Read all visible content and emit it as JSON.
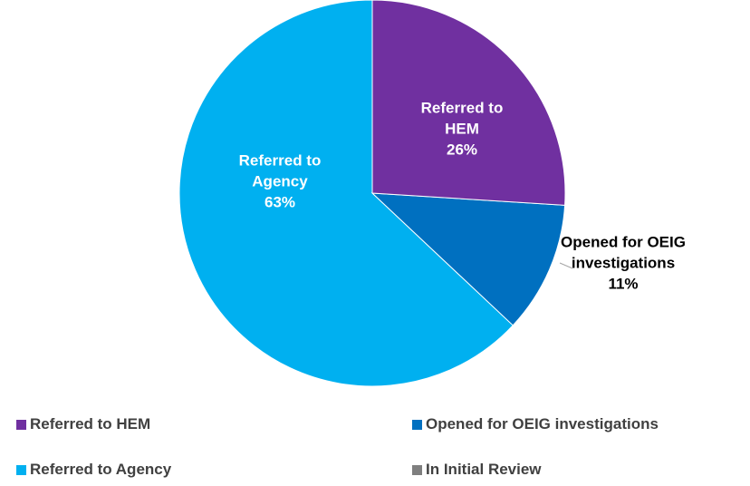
{
  "chart_data": {
    "type": "pie",
    "categories": [
      "Referred to HEM",
      "Opened for OEIG investigations",
      "Referred to Agency",
      "In Initial Review"
    ],
    "values": [
      26,
      11,
      63,
      0
    ],
    "value_labels": [
      "26%",
      "11%",
      "63%",
      null
    ],
    "colors": [
      "#7030a0",
      "#0070c0",
      "#00b0f0",
      "#7f7f7f"
    ],
    "legend": "bottom"
  }
}
